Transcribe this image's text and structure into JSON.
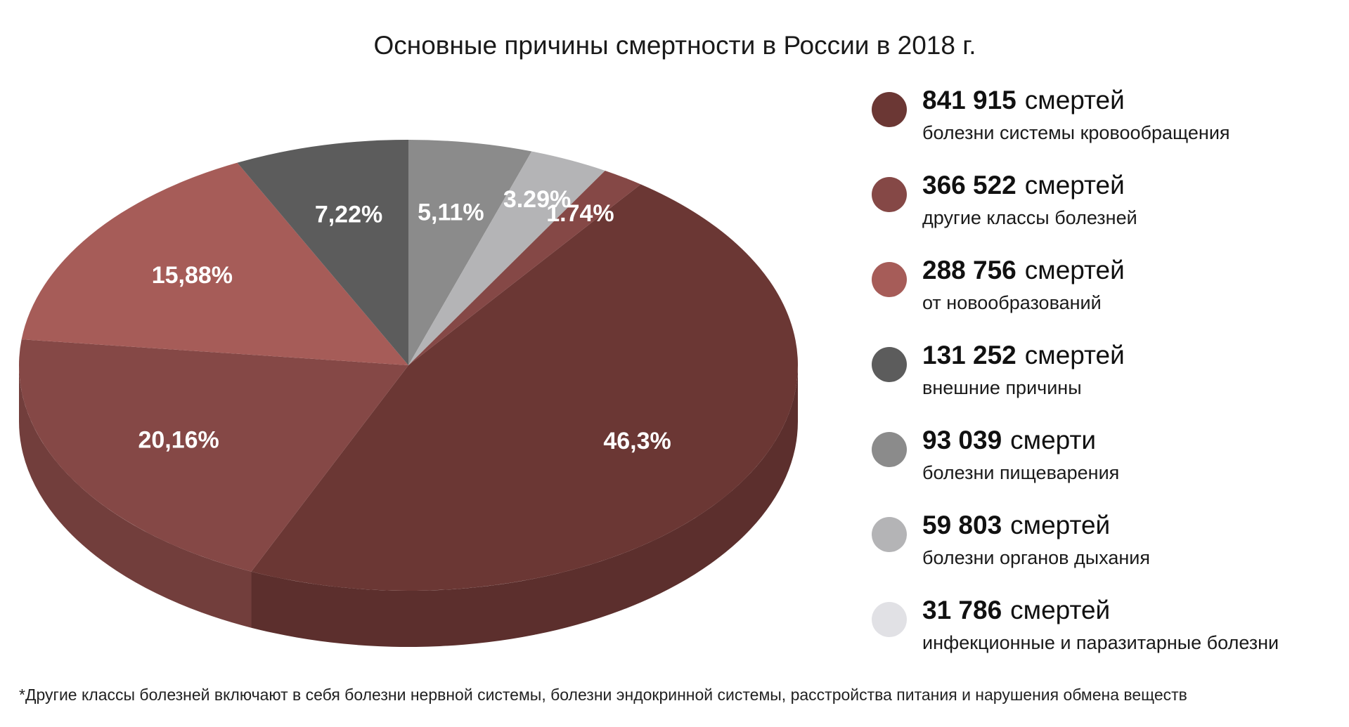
{
  "chart_data": {
    "type": "pie",
    "title": "Основные причины смертности в России в 2018 г.",
    "categories": [
      "болезни системы кровообращения",
      "другие классы болезней",
      "от новообразований",
      "внешние причины",
      "болезни пищеварения",
      "болезни органов дыхания",
      "инфекционные и паразитарные болезни"
    ],
    "values": [
      46.3,
      20.16,
      15.88,
      7.22,
      5.11,
      3.29,
      1.74
    ],
    "value_labels": [
      "46,3%",
      "20,16%",
      "15,88%",
      "7,22%",
      "5,11%",
      "3.29%",
      "1.74%"
    ],
    "count_labels": [
      "841 915",
      "366 522",
      "288 756",
      "131 252",
      "93 039",
      "59 803",
      "31 786"
    ],
    "count_units": [
      "смертей",
      "смертей",
      "смертей",
      "смертей",
      "смерти",
      "смертей",
      "смертей"
    ],
    "colors": [
      "#6b3734",
      "#854846",
      "#a65c58",
      "#5c5c5c",
      "#8b8b8b",
      "#b4b4b6",
      "#854846"
    ],
    "legend_colors": [
      "#6b3734",
      "#854846",
      "#a65c58",
      "#5c5c5c",
      "#8b8b8b",
      "#b4b4b6",
      "#e1e1e5"
    ],
    "footnote": "*Другие классы болезней включают в себя болезни нервной системы, болезни эндокринной системы, расстройства питания и нарушения обмена веществ"
  }
}
